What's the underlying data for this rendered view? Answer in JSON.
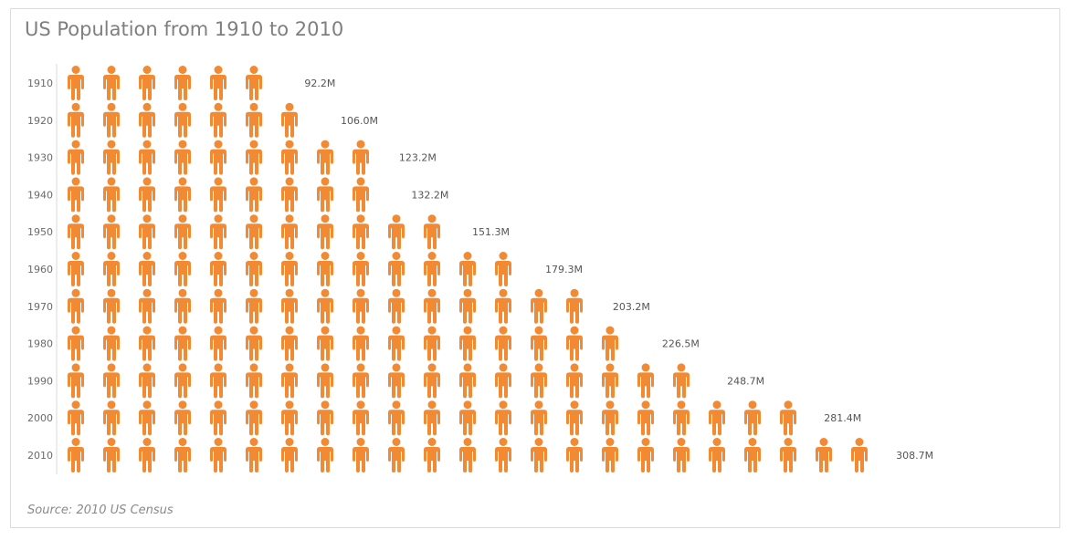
{
  "title": "US Population from 1910 to 2010",
  "source": "Source: 2010 US Census",
  "icon": "person-icon",
  "colors": {
    "icon": "#f28a34",
    "axis": "#d9d9d9"
  },
  "chart_data": {
    "type": "pictograph",
    "title": "US Population from 1910 to 2010",
    "icon_value_millions": 13.33,
    "categories": [
      "1910",
      "1920",
      "1930",
      "1940",
      "1950",
      "1960",
      "1970",
      "1980",
      "1990",
      "2000",
      "2010"
    ],
    "values": [
      92.2,
      106.0,
      123.2,
      132.2,
      151.3,
      179.3,
      203.2,
      226.5,
      248.7,
      281.4,
      308.7
    ],
    "value_labels": [
      "92.2M",
      "106.0M",
      "123.2M",
      "132.2M",
      "151.3M",
      "179.3M",
      "203.2M",
      "226.5M",
      "248.7M",
      "281.4M",
      "308.7M"
    ],
    "orientation": "horizontal",
    "grid": false,
    "legend": "none"
  }
}
